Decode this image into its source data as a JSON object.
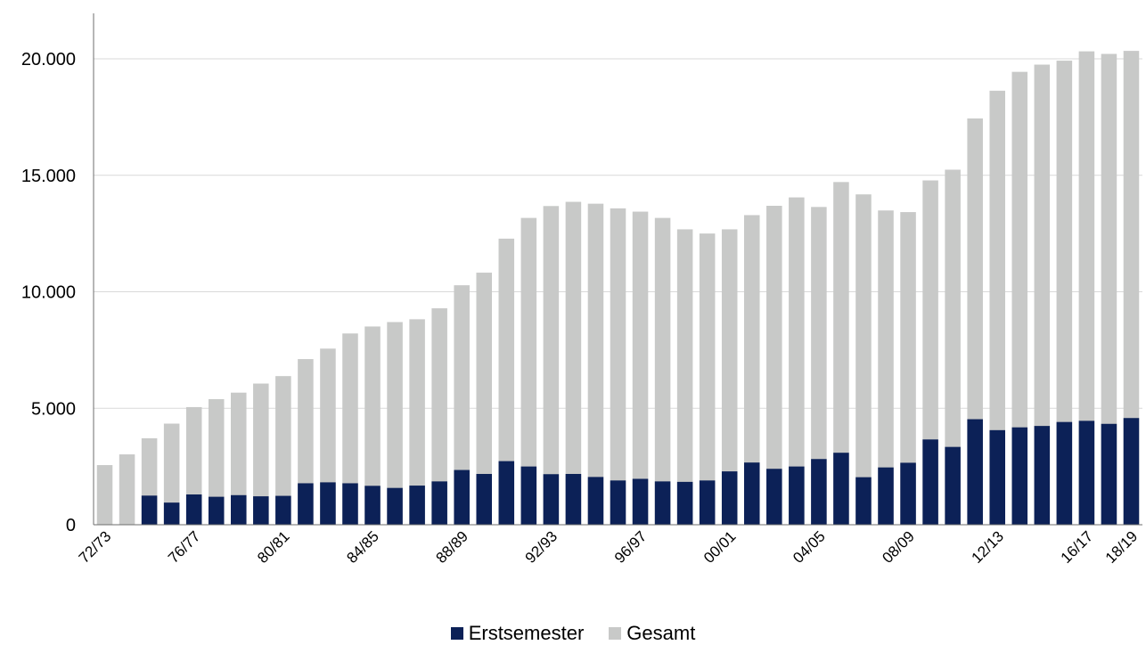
{
  "chart_data": {
    "type": "bar",
    "grouping": "overlapped",
    "categories": [
      "72/73",
      "73/74",
      "74/75",
      "75/76",
      "76/77",
      "77/78",
      "78/79",
      "79/80",
      "80/81",
      "81/82",
      "82/83",
      "83/84",
      "84/85",
      "85/86",
      "86/87",
      "87/88",
      "88/89",
      "89/90",
      "90/91",
      "91/92",
      "92/93",
      "93/94",
      "94/95",
      "95/96",
      "96/97",
      "97/98",
      "98/99",
      "99/00",
      "00/01",
      "01/02",
      "02/03",
      "03/04",
      "04/05",
      "05/06",
      "06/07",
      "07/08",
      "08/09",
      "09/10",
      "10/11",
      "11/12",
      "12/13",
      "13/14",
      "14/15",
      "15/16",
      "16/17",
      "17/18",
      "18/19"
    ],
    "tick_labels": [
      "72/73",
      "76/77",
      "80/81",
      "84/85",
      "88/89",
      "92/93",
      "96/97",
      "00/01",
      "04/05",
      "08/09",
      "12/13",
      "16/17",
      "18/19"
    ],
    "series": [
      {
        "name": "Erstsemester",
        "color": "#0c2157",
        "values": [
          null,
          null,
          1250,
          950,
          1300,
          1200,
          1270,
          1220,
          1240,
          1780,
          1820,
          1780,
          1670,
          1580,
          1680,
          1860,
          2350,
          2180,
          2730,
          2500,
          2170,
          2180,
          2050,
          1900,
          1970,
          1860,
          1840,
          1900,
          2290,
          2670,
          2400,
          2500,
          2820,
          3090,
          2040,
          2460,
          2660,
          3660,
          3340,
          4530,
          4060,
          4180,
          4240,
          4410,
          4460,
          4330,
          4580
        ]
      },
      {
        "name": "Gesamt",
        "color": "#c8c9c8",
        "values": [
          2560,
          3020,
          3710,
          4340,
          5050,
          5390,
          5670,
          6060,
          6380,
          7110,
          7560,
          8210,
          8510,
          8700,
          8820,
          9290,
          10280,
          10820,
          12280,
          13170,
          13680,
          13860,
          13780,
          13580,
          13440,
          13170,
          12680,
          12500,
          12680,
          13290,
          13690,
          14050,
          13640,
          14710,
          14180,
          13490,
          13420,
          14780,
          15240,
          17440,
          18630,
          19440,
          19750,
          19920,
          20320,
          20210,
          20340
        ]
      }
    ],
    "ylim": [
      0,
      22000
    ],
    "yticks": [
      0,
      5000,
      10000,
      15000,
      20000
    ],
    "ytick_labels": [
      "0",
      "5.000",
      "10.000",
      "15.000",
      "20.000"
    ],
    "grid": true,
    "legend_position": "bottom-center"
  }
}
